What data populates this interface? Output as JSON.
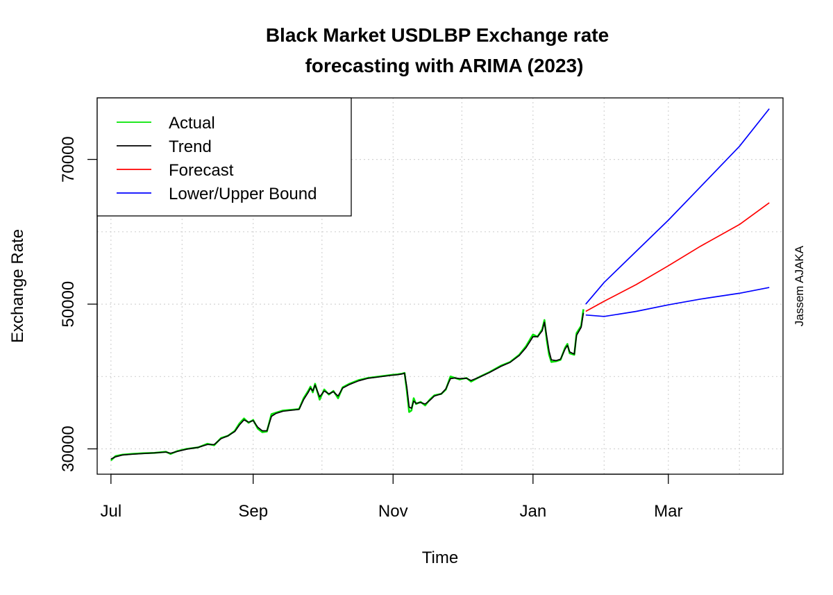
{
  "chart_data": {
    "type": "line",
    "title_line1": "Black Market USDLBP Exchange rate",
    "title_line2": "forecasting with ARIMA (2023)",
    "xlabel": "Time",
    "ylabel": "Exchange Rate",
    "side_label": "Jassem AJAKA",
    "x_ticks": [
      {
        "date": "2022-07-01",
        "label": "Jul"
      },
      {
        "date": "2022-09-01",
        "label": "Sep"
      },
      {
        "date": "2022-11-01",
        "label": "Nov"
      },
      {
        "date": "2023-01-01",
        "label": "Jan"
      },
      {
        "date": "2023-03-01",
        "label": "Mar"
      }
    ],
    "y_ticks": [
      30000,
      50000,
      70000
    ],
    "x_grid": [
      "2022-07-01",
      "2022-08-01",
      "2022-09-01",
      "2022-10-01",
      "2022-11-01",
      "2022-12-01",
      "2023-01-01",
      "2023-02-01",
      "2023-03-01",
      "2023-04-01"
    ],
    "y_grid": [
      30000,
      40000,
      50000,
      60000,
      70000
    ],
    "xlim": [
      "2022-06-25",
      "2023-04-20"
    ],
    "ylim": [
      26500,
      78500
    ],
    "grid": true,
    "legend": {
      "position": "top-left",
      "entries": [
        {
          "label": "Actual",
          "color": "#00e400"
        },
        {
          "label": "Trend",
          "color": "#000000"
        },
        {
          "label": "Forecast",
          "color": "#ff0000"
        },
        {
          "label": "Lower/Upper Bound",
          "color": "#0000ff"
        }
      ]
    },
    "series": [
      {
        "name": "Actual",
        "color": "#00e400",
        "points": [
          [
            "2022-07-01",
            28400
          ],
          [
            "2022-07-03",
            29000
          ],
          [
            "2022-07-06",
            29200
          ],
          [
            "2022-07-10",
            29300
          ],
          [
            "2022-07-15",
            29400
          ],
          [
            "2022-07-20",
            29450
          ],
          [
            "2022-07-25",
            29600
          ],
          [
            "2022-07-27",
            29300
          ],
          [
            "2022-07-30",
            29700
          ],
          [
            "2022-08-03",
            30000
          ],
          [
            "2022-08-08",
            30200
          ],
          [
            "2022-08-12",
            30700
          ],
          [
            "2022-08-15",
            30500
          ],
          [
            "2022-08-18",
            31500
          ],
          [
            "2022-08-21",
            31800
          ],
          [
            "2022-08-24",
            32500
          ],
          [
            "2022-08-26",
            33500
          ],
          [
            "2022-08-28",
            34200
          ],
          [
            "2022-08-30",
            33600
          ],
          [
            "2022-09-01",
            34000
          ],
          [
            "2022-09-03",
            32800
          ],
          [
            "2022-09-05",
            32300
          ],
          [
            "2022-09-07",
            32400
          ],
          [
            "2022-09-09",
            34800
          ],
          [
            "2022-09-11",
            35000
          ],
          [
            "2022-09-14",
            35300
          ],
          [
            "2022-09-18",
            35400
          ],
          [
            "2022-09-21",
            35500
          ],
          [
            "2022-09-23",
            37000
          ],
          [
            "2022-09-25",
            38000
          ],
          [
            "2022-09-26",
            38600
          ],
          [
            "2022-09-27",
            37800
          ],
          [
            "2022-09-28",
            39000
          ],
          [
            "2022-09-30",
            36800
          ],
          [
            "2022-10-02",
            38200
          ],
          [
            "2022-10-04",
            37500
          ],
          [
            "2022-10-06",
            38000
          ],
          [
            "2022-10-08",
            37000
          ],
          [
            "2022-10-10",
            38500
          ],
          [
            "2022-10-13",
            39000
          ],
          [
            "2022-10-17",
            39500
          ],
          [
            "2022-10-21",
            39800
          ],
          [
            "2022-10-26",
            40000
          ],
          [
            "2022-10-31",
            40200
          ],
          [
            "2022-11-03",
            40300
          ],
          [
            "2022-11-05",
            40400
          ],
          [
            "2022-11-06",
            40500
          ],
          [
            "2022-11-07",
            38000
          ],
          [
            "2022-11-08",
            35100
          ],
          [
            "2022-11-09",
            35300
          ],
          [
            "2022-11-10",
            37000
          ],
          [
            "2022-11-11",
            36200
          ],
          [
            "2022-11-13",
            36500
          ],
          [
            "2022-11-15",
            36000
          ],
          [
            "2022-11-17",
            36800
          ],
          [
            "2022-11-19",
            37400
          ],
          [
            "2022-11-22",
            37600
          ],
          [
            "2022-11-24",
            38200
          ],
          [
            "2022-11-26",
            40000
          ],
          [
            "2022-11-28",
            39800
          ],
          [
            "2022-11-30",
            39600
          ],
          [
            "2022-12-03",
            39800
          ],
          [
            "2022-12-05",
            39300
          ],
          [
            "2022-12-09",
            40000
          ],
          [
            "2022-12-13",
            40600
          ],
          [
            "2022-12-18",
            41500
          ],
          [
            "2022-12-22",
            42000
          ],
          [
            "2022-12-26",
            43000
          ],
          [
            "2022-12-29",
            44200
          ],
          [
            "2023-01-01",
            45800
          ],
          [
            "2023-01-03",
            45500
          ],
          [
            "2023-01-05",
            46500
          ],
          [
            "2023-01-06",
            47800
          ],
          [
            "2023-01-07",
            45000
          ],
          [
            "2023-01-08",
            43000
          ],
          [
            "2023-01-09",
            42000
          ],
          [
            "2023-01-11",
            42100
          ],
          [
            "2023-01-13",
            42300
          ],
          [
            "2023-01-15",
            44000
          ],
          [
            "2023-01-16",
            44500
          ],
          [
            "2023-01-17",
            43200
          ],
          [
            "2023-01-19",
            43000
          ],
          [
            "2023-01-20",
            46000
          ],
          [
            "2023-01-22",
            47000
          ],
          [
            "2023-01-23",
            49300
          ]
        ]
      },
      {
        "name": "Trend",
        "color": "#000000",
        "points": [
          [
            "2022-07-01",
            28600
          ],
          [
            "2022-07-03",
            28900
          ],
          [
            "2022-07-06",
            29150
          ],
          [
            "2022-07-10",
            29250
          ],
          [
            "2022-07-15",
            29350
          ],
          [
            "2022-07-20",
            29450
          ],
          [
            "2022-07-25",
            29550
          ],
          [
            "2022-07-27",
            29400
          ],
          [
            "2022-07-30",
            29650
          ],
          [
            "2022-08-03",
            29950
          ],
          [
            "2022-08-08",
            30200
          ],
          [
            "2022-08-12",
            30600
          ],
          [
            "2022-08-15",
            30600
          ],
          [
            "2022-08-18",
            31400
          ],
          [
            "2022-08-21",
            31800
          ],
          [
            "2022-08-24",
            32400
          ],
          [
            "2022-08-26",
            33300
          ],
          [
            "2022-08-28",
            34000
          ],
          [
            "2022-08-30",
            33700
          ],
          [
            "2022-09-01",
            33900
          ],
          [
            "2022-09-03",
            33000
          ],
          [
            "2022-09-05",
            32500
          ],
          [
            "2022-09-07",
            32500
          ],
          [
            "2022-09-09",
            34500
          ],
          [
            "2022-09-11",
            34900
          ],
          [
            "2022-09-14",
            35200
          ],
          [
            "2022-09-18",
            35350
          ],
          [
            "2022-09-21",
            35450
          ],
          [
            "2022-09-23",
            36800
          ],
          [
            "2022-09-25",
            37800
          ],
          [
            "2022-09-26",
            38400
          ],
          [
            "2022-09-27",
            38000
          ],
          [
            "2022-09-28",
            38800
          ],
          [
            "2022-09-30",
            37200
          ],
          [
            "2022-10-02",
            38000
          ],
          [
            "2022-10-04",
            37600
          ],
          [
            "2022-10-06",
            37900
          ],
          [
            "2022-10-08",
            37300
          ],
          [
            "2022-10-10",
            38400
          ],
          [
            "2022-10-13",
            38900
          ],
          [
            "2022-10-17",
            39400
          ],
          [
            "2022-10-21",
            39750
          ],
          [
            "2022-10-26",
            39950
          ],
          [
            "2022-10-31",
            40150
          ],
          [
            "2022-11-03",
            40250
          ],
          [
            "2022-11-05",
            40350
          ],
          [
            "2022-11-06",
            40450
          ],
          [
            "2022-11-07",
            38500
          ],
          [
            "2022-11-08",
            35800
          ],
          [
            "2022-11-09",
            35600
          ],
          [
            "2022-11-10",
            36600
          ],
          [
            "2022-11-11",
            36300
          ],
          [
            "2022-11-13",
            36400
          ],
          [
            "2022-11-15",
            36200
          ],
          [
            "2022-11-17",
            36700
          ],
          [
            "2022-11-19",
            37300
          ],
          [
            "2022-11-22",
            37600
          ],
          [
            "2022-11-24",
            38300
          ],
          [
            "2022-11-26",
            39700
          ],
          [
            "2022-11-28",
            39800
          ],
          [
            "2022-11-30",
            39700
          ],
          [
            "2022-12-03",
            39750
          ],
          [
            "2022-12-05",
            39450
          ],
          [
            "2022-12-09",
            39950
          ],
          [
            "2022-12-13",
            40550
          ],
          [
            "2022-12-18",
            41400
          ],
          [
            "2022-12-22",
            41950
          ],
          [
            "2022-12-26",
            42900
          ],
          [
            "2022-12-29",
            44000
          ],
          [
            "2023-01-01",
            45500
          ],
          [
            "2023-01-03",
            45500
          ],
          [
            "2023-01-05",
            46300
          ],
          [
            "2023-01-06",
            47500
          ],
          [
            "2023-01-07",
            45500
          ],
          [
            "2023-01-08",
            43500
          ],
          [
            "2023-01-09",
            42300
          ],
          [
            "2023-01-11",
            42200
          ],
          [
            "2023-01-13",
            42400
          ],
          [
            "2023-01-15",
            43800
          ],
          [
            "2023-01-16",
            44300
          ],
          [
            "2023-01-17",
            43400
          ],
          [
            "2023-01-19",
            43100
          ],
          [
            "2023-01-20",
            45700
          ],
          [
            "2023-01-22",
            46800
          ],
          [
            "2023-01-23",
            48800
          ]
        ]
      },
      {
        "name": "Forecast",
        "color": "#ff0000",
        "points": [
          [
            "2023-01-24",
            49000
          ],
          [
            "2023-02-01",
            50400
          ],
          [
            "2023-02-15",
            52700
          ],
          [
            "2023-03-01",
            55300
          ],
          [
            "2023-03-15",
            58000
          ],
          [
            "2023-04-01",
            61000
          ],
          [
            "2023-04-14",
            64000
          ]
        ]
      },
      {
        "name": "Upper Bound",
        "color": "#0000ff",
        "points": [
          [
            "2023-01-24",
            50000
          ],
          [
            "2023-02-01",
            53000
          ],
          [
            "2023-02-15",
            57300
          ],
          [
            "2023-03-01",
            61600
          ],
          [
            "2023-03-15",
            66200
          ],
          [
            "2023-04-01",
            71800
          ],
          [
            "2023-04-14",
            77000
          ]
        ]
      },
      {
        "name": "Lower Bound",
        "color": "#0000ff",
        "points": [
          [
            "2023-01-24",
            48500
          ],
          [
            "2023-02-01",
            48300
          ],
          [
            "2023-02-15",
            49000
          ],
          [
            "2023-03-01",
            49900
          ],
          [
            "2023-03-15",
            50700
          ],
          [
            "2023-04-01",
            51500
          ],
          [
            "2023-04-14",
            52300
          ]
        ]
      }
    ]
  }
}
